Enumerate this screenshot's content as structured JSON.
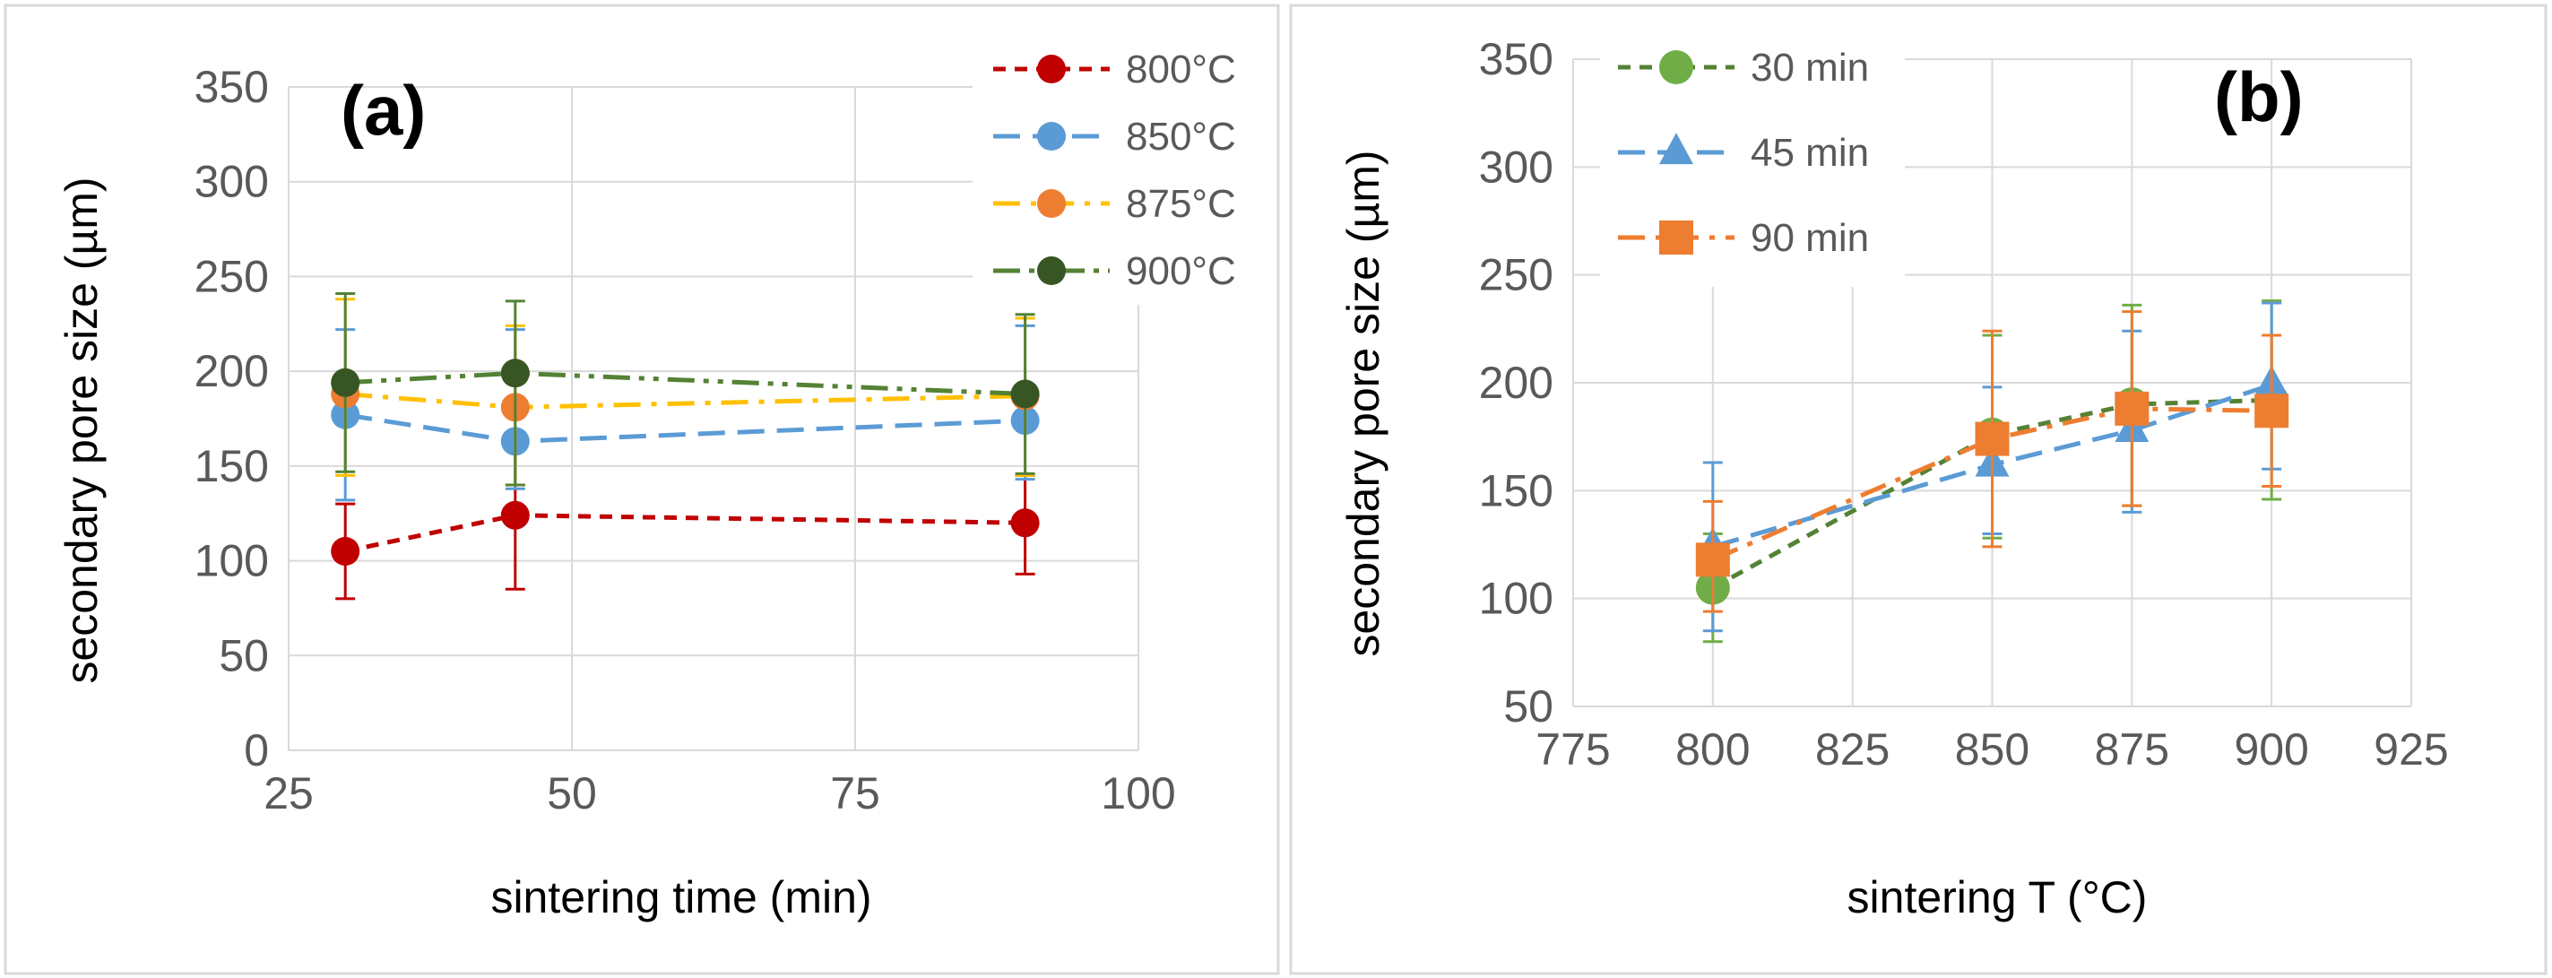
{
  "chart_data": [
    {
      "type": "line",
      "panel_label": "(a)",
      "xlabel": "sintering time (min)",
      "ylabel": "secondary pore size (µm)",
      "xlim": [
        25,
        100
      ],
      "ylim": [
        0,
        350
      ],
      "x_ticks": [
        25,
        50,
        75,
        100
      ],
      "y_ticks": [
        0,
        50,
        100,
        150,
        200,
        250,
        300,
        350
      ],
      "grid": "vertical and horizontal major gridlines",
      "legend_position": "top-right",
      "series": [
        {
          "name": "800°C",
          "color": "#c00000",
          "dash": "short-dash",
          "marker": "circle",
          "x": [
            30,
            45,
            90
          ],
          "y": [
            105,
            124,
            120
          ],
          "err_low": [
            80,
            85,
            93
          ],
          "err_high": [
            130,
            163,
            145
          ]
        },
        {
          "name": "850°C",
          "color": "#5b9bd5",
          "dash": "long-dash",
          "marker": "circle",
          "x": [
            30,
            45,
            90
          ],
          "y": [
            177,
            163,
            174
          ],
          "err_low": [
            132,
            138,
            143
          ],
          "err_high": [
            222,
            222,
            224
          ]
        },
        {
          "name": "875°C",
          "color": "#ffc000",
          "dash": "dash-dot",
          "marker": "circle",
          "x": [
            30,
            45,
            90
          ],
          "y": [
            188,
            181,
            187
          ],
          "err_low": [
            145,
            140,
            145
          ],
          "err_high": [
            238,
            224,
            228
          ]
        },
        {
          "name": "900°C",
          "color": "#548235",
          "dash": "dash-dot-dot",
          "marker": "circle",
          "x": [
            30,
            45,
            90
          ],
          "y": [
            194,
            199,
            188
          ],
          "err_low": [
            147,
            140,
            146
          ],
          "err_high": [
            241,
            237,
            230
          ]
        }
      ],
      "legend_marker_colors": [
        "#c00000",
        "#5b9bd5",
        "#ed7d31",
        "#375623"
      ]
    },
    {
      "type": "line",
      "panel_label": "(b)",
      "xlabel": "sintering T (°C)",
      "ylabel": "secondary pore size (µm)",
      "xlim": [
        775,
        925
      ],
      "ylim": [
        50,
        350
      ],
      "x_ticks": [
        775,
        800,
        825,
        850,
        875,
        900,
        925
      ],
      "y_ticks": [
        50,
        100,
        150,
        200,
        250,
        300,
        350
      ],
      "grid": "vertical and horizontal major gridlines",
      "legend_position": "top-left",
      "series": [
        {
          "name": "30 min",
          "color": "#548235",
          "dash": "short-dash",
          "marker": "circle",
          "marker_color": "#70ad47",
          "x": [
            800,
            850,
            875,
            900
          ],
          "y": [
            105,
            176,
            190,
            192
          ],
          "err_low": [
            80,
            128,
            143,
            146
          ],
          "err_high": [
            130,
            222,
            236,
            238
          ]
        },
        {
          "name": "45 min",
          "color": "#5b9bd5",
          "dash": "long-dash",
          "marker": "triangle",
          "marker_color": "#5b9bd5",
          "x": [
            800,
            850,
            875,
            900
          ],
          "y": [
            124,
            162,
            178,
            199
          ],
          "err_low": [
            85,
            130,
            140,
            160
          ],
          "err_high": [
            163,
            198,
            224,
            237
          ]
        },
        {
          "name": "90 min",
          "color": "#ed7d31",
          "dash": "dash-dot",
          "marker": "square",
          "marker_color": "#ed7d31",
          "x": [
            800,
            850,
            875,
            900
          ],
          "y": [
            118,
            174,
            188,
            187
          ],
          "err_low": [
            94,
            124,
            143,
            152
          ],
          "err_high": [
            145,
            224,
            233,
            222
          ]
        }
      ]
    }
  ]
}
